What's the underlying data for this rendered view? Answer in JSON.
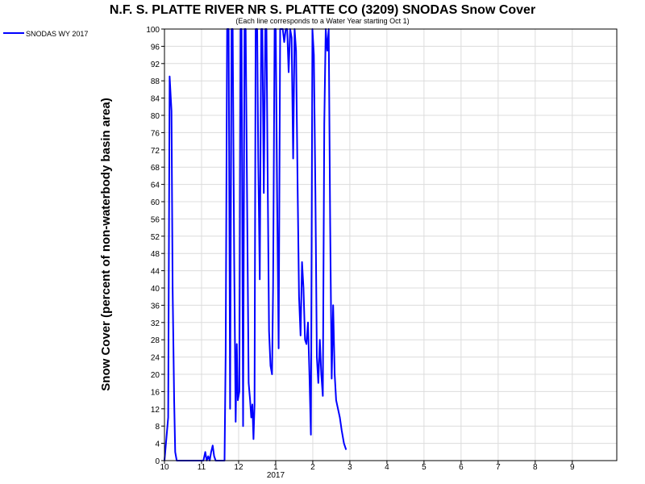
{
  "chart_data": {
    "type": "line",
    "title": "N.F. S. PLATTE RIVER NR S. PLATTE CO (3209) SNODAS Snow Cover",
    "subtitle": "(Each line corresponds to a Water Year starting Oct 1)",
    "ylabel": "Snow Cover (percent of non-waterbody basin area)",
    "xlabel": "",
    "ylim": [
      0,
      100
    ],
    "yticks": [
      0,
      4,
      8,
      12,
      16,
      20,
      24,
      28,
      32,
      36,
      40,
      44,
      48,
      52,
      56,
      60,
      64,
      68,
      72,
      76,
      80,
      84,
      88,
      92,
      96,
      100
    ],
    "xticks": [
      {
        "month": 0,
        "label": "10"
      },
      {
        "month": 1,
        "label": "11"
      },
      {
        "month": 2,
        "label": "12"
      },
      {
        "month": 3,
        "label": "1",
        "sublabel": "2017"
      },
      {
        "month": 4,
        "label": "2"
      },
      {
        "month": 5,
        "label": "3"
      },
      {
        "month": 6,
        "label": "4"
      },
      {
        "month": 7,
        "label": "5"
      },
      {
        "month": 8,
        "label": "6"
      },
      {
        "month": 9,
        "label": "7"
      },
      {
        "month": 10,
        "label": "8"
      },
      {
        "month": 11,
        "label": "9"
      }
    ],
    "xlim": [
      0,
      12.2
    ],
    "grid": true,
    "legend_position": "top-left",
    "series": [
      {
        "name": "SNODAS WY 2017",
        "color": "#0000ff",
        "points": [
          [
            0.0,
            0
          ],
          [
            0.1,
            10
          ],
          [
            0.14,
            89
          ],
          [
            0.19,
            81
          ],
          [
            0.22,
            40
          ],
          [
            0.26,
            14
          ],
          [
            0.29,
            2
          ],
          [
            0.33,
            0
          ],
          [
            0.5,
            0
          ],
          [
            0.8,
            0
          ],
          [
            1.05,
            0
          ],
          [
            1.1,
            2
          ],
          [
            1.14,
            0
          ],
          [
            1.18,
            1
          ],
          [
            1.22,
            0
          ],
          [
            1.26,
            2
          ],
          [
            1.3,
            3.5
          ],
          [
            1.34,
            1
          ],
          [
            1.38,
            0
          ],
          [
            1.45,
            0
          ],
          [
            1.58,
            0
          ],
          [
            1.62,
            0
          ],
          [
            1.65,
            25
          ],
          [
            1.69,
            100
          ],
          [
            1.73,
            100
          ],
          [
            1.77,
            12
          ],
          [
            1.81,
            100
          ],
          [
            1.84,
            100
          ],
          [
            1.88,
            48
          ],
          [
            1.92,
            9
          ],
          [
            1.95,
            27
          ],
          [
            1.98,
            14
          ],
          [
            2.02,
            16
          ],
          [
            2.05,
            100
          ],
          [
            2.08,
            100
          ],
          [
            2.12,
            8
          ],
          [
            2.16,
            100
          ],
          [
            2.19,
            100
          ],
          [
            2.23,
            60
          ],
          [
            2.27,
            18
          ],
          [
            2.31,
            14
          ],
          [
            2.34,
            10
          ],
          [
            2.37,
            13
          ],
          [
            2.4,
            5
          ],
          [
            2.43,
            13
          ],
          [
            2.46,
            100
          ],
          [
            2.5,
            100
          ],
          [
            2.53,
            70
          ],
          [
            2.57,
            42
          ],
          [
            2.61,
            100
          ],
          [
            2.64,
            100
          ],
          [
            2.68,
            62
          ],
          [
            2.72,
            100
          ],
          [
            2.75,
            100
          ],
          [
            2.78,
            70
          ],
          [
            2.82,
            30
          ],
          [
            2.86,
            22
          ],
          [
            2.9,
            20
          ],
          [
            2.93,
            40
          ],
          [
            2.97,
            100
          ],
          [
            3.0,
            100
          ],
          [
            3.04,
            60
          ],
          [
            3.08,
            26
          ],
          [
            3.12,
            100
          ],
          [
            3.15,
            100
          ],
          [
            3.19,
            100
          ],
          [
            3.23,
            97
          ],
          [
            3.27,
            100
          ],
          [
            3.31,
            100
          ],
          [
            3.35,
            90
          ],
          [
            3.39,
            100
          ],
          [
            3.43,
            98
          ],
          [
            3.47,
            70
          ],
          [
            3.51,
            100
          ],
          [
            3.55,
            95
          ],
          [
            3.59,
            64
          ],
          [
            3.63,
            38
          ],
          [
            3.67,
            29
          ],
          [
            3.71,
            46
          ],
          [
            3.75,
            40
          ],
          [
            3.79,
            28
          ],
          [
            3.83,
            27
          ],
          [
            3.87,
            32
          ],
          [
            3.91,
            20
          ],
          [
            3.95,
            6
          ],
          [
            3.99,
            100
          ],
          [
            4.03,
            94
          ],
          [
            4.07,
            62
          ],
          [
            4.11,
            24
          ],
          [
            4.15,
            18
          ],
          [
            4.19,
            28
          ],
          [
            4.23,
            20
          ],
          [
            4.27,
            15
          ],
          [
            4.31,
            78
          ],
          [
            4.35,
            100
          ],
          [
            4.39,
            95
          ],
          [
            4.43,
            100
          ],
          [
            4.47,
            55
          ],
          [
            4.51,
            19
          ],
          [
            4.55,
            36
          ],
          [
            4.59,
            20
          ],
          [
            4.63,
            14
          ],
          [
            4.68,
            12
          ],
          [
            4.73,
            10
          ],
          [
            4.78,
            7
          ],
          [
            4.84,
            4
          ],
          [
            4.9,
            2.5
          ]
        ]
      }
    ]
  }
}
